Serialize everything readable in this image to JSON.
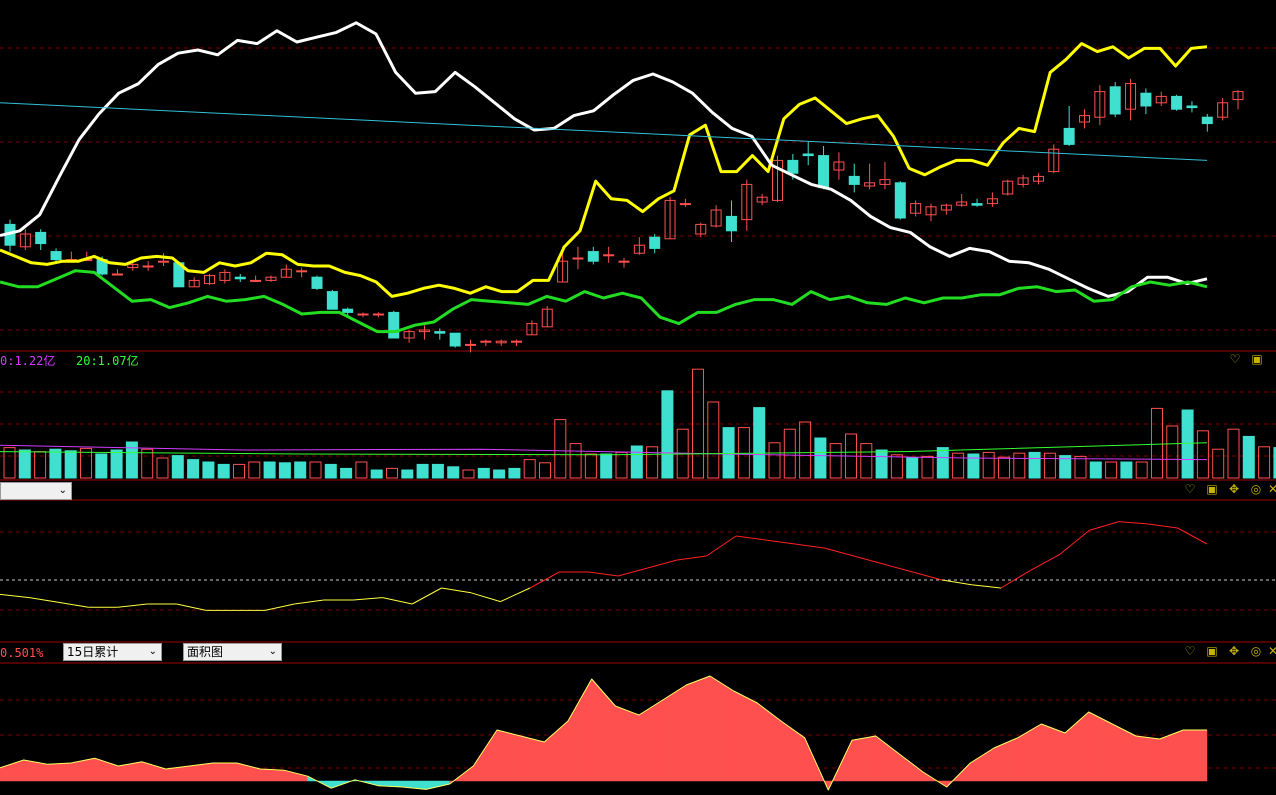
{
  "panels": {
    "volume": {
      "legend": [
        {
          "text": "0:1.22亿",
          "color": "#d23cff"
        },
        {
          "text": "20:1.07亿",
          "color": "#32ff32"
        }
      ],
      "icons": [
        "heart-icon",
        "window-icon",
        "pin-icon"
      ]
    },
    "indicator": {
      "dropdown": "",
      "icons": [
        "heart-icon",
        "window-icon",
        "pin-icon",
        "search-icon",
        "close-icon"
      ]
    },
    "flow": {
      "value_label": "0.501%",
      "dropdown_period": "15日累计",
      "dropdown_type": "面积图",
      "icons": [
        "heart-icon",
        "window-icon",
        "pin-icon",
        "search-icon",
        "close-icon"
      ]
    }
  },
  "colors": {
    "up": "#ff5050",
    "down": "#40e0d0",
    "grid": "#7a0000",
    "yellow": "#ffff00",
    "white": "#ffffff",
    "green": "#22dd22",
    "cyan": "#33c0d8"
  },
  "chart_data": [
    {
      "type": "candlestick",
      "name": "price",
      "candles": [
        [
          0.66,
          0.53,
          0.69,
          0.49
        ],
        [
          0.52,
          0.6,
          0.63,
          0.5
        ],
        [
          0.61,
          0.54,
          0.63,
          0.5
        ],
        [
          0.49,
          0.44,
          0.51,
          0.42
        ],
        [
          0.44,
          0.44,
          0.49,
          0.42
        ],
        [
          0.44,
          0.44,
          0.49,
          0.43
        ],
        [
          0.44,
          0.35,
          0.46,
          0.34
        ],
        [
          0.35,
          0.35,
          0.38,
          0.34
        ],
        [
          0.39,
          0.41,
          0.43,
          0.37
        ],
        [
          0.4,
          0.4,
          0.43,
          0.37
        ],
        [
          0.43,
          0.43,
          0.48,
          0.4
        ],
        [
          0.42,
          0.27,
          0.43,
          0.27
        ],
        [
          0.27,
          0.31,
          0.33,
          0.27
        ],
        [
          0.29,
          0.34,
          0.35,
          0.28
        ],
        [
          0.31,
          0.36,
          0.38,
          0.29
        ],
        [
          0.33,
          0.32,
          0.35,
          0.3
        ],
        [
          0.31,
          0.31,
          0.34,
          0.3
        ],
        [
          0.31,
          0.33,
          0.34,
          0.3
        ],
        [
          0.33,
          0.38,
          0.41,
          0.33
        ],
        [
          0.37,
          0.37,
          0.39,
          0.33
        ],
        [
          0.33,
          0.26,
          0.34,
          0.25
        ],
        [
          0.24,
          0.13,
          0.25,
          0.13
        ],
        [
          0.13,
          0.11,
          0.14,
          0.09
        ],
        [
          0.1,
          0.1,
          0.11,
          0.08
        ],
        [
          0.1,
          0.1,
          0.11,
          0.08
        ],
        [
          0.11,
          -0.05,
          0.12,
          -0.05
        ],
        [
          -0.05,
          -0.01,
          0.0,
          -0.08
        ],
        [
          -0.01,
          0.0,
          0.03,
          -0.06
        ],
        [
          -0.01,
          -0.02,
          0.01,
          -0.06
        ],
        [
          -0.02,
          -0.1,
          -0.02,
          -0.11
        ],
        [
          -0.09,
          -0.09,
          -0.06,
          -0.14
        ],
        [
          -0.07,
          -0.07,
          -0.06,
          -0.1
        ],
        [
          -0.08,
          -0.07,
          -0.06,
          -0.1
        ],
        [
          -0.07,
          -0.07,
          -0.06,
          -0.1
        ],
        [
          -0.03,
          0.04,
          0.06,
          -0.03
        ],
        [
          0.02,
          0.13,
          0.15,
          0.02
        ],
        [
          0.3,
          0.43,
          0.52,
          0.3
        ],
        [
          0.45,
          0.45,
          0.52,
          0.38
        ],
        [
          0.49,
          0.43,
          0.52,
          0.41
        ],
        [
          0.47,
          0.47,
          0.52,
          0.42
        ],
        [
          0.43,
          0.43,
          0.45,
          0.39
        ],
        [
          0.48,
          0.53,
          0.58,
          0.47
        ],
        [
          0.58,
          0.51,
          0.6,
          0.48
        ],
        [
          0.57,
          0.81,
          0.83,
          0.57
        ],
        [
          0.79,
          0.79,
          0.82,
          0.77
        ],
        [
          0.6,
          0.66,
          0.67,
          0.58
        ],
        [
          0.65,
          0.75,
          0.78,
          0.64
        ],
        [
          0.71,
          0.62,
          0.81,
          0.55
        ],
        [
          0.69,
          0.91,
          0.94,
          0.62
        ],
        [
          0.8,
          0.83,
          0.85,
          0.78
        ],
        [
          0.81,
          1.06,
          1.09,
          0.8
        ],
        [
          1.06,
          0.98,
          1.1,
          0.94
        ],
        [
          1.1,
          1.09,
          1.18,
          1.03
        ],
        [
          1.09,
          0.89,
          1.15,
          0.88
        ],
        [
          1.0,
          1.05,
          1.11,
          0.94
        ],
        [
          0.96,
          0.91,
          1.04,
          0.86
        ],
        [
          0.9,
          0.92,
          1.04,
          0.88
        ],
        [
          0.91,
          0.94,
          1.05,
          0.88
        ],
        [
          0.92,
          0.7,
          0.93,
          0.69
        ],
        [
          0.73,
          0.79,
          0.81,
          0.71
        ],
        [
          0.72,
          0.77,
          0.79,
          0.68
        ],
        [
          0.75,
          0.78,
          0.79,
          0.72
        ],
        [
          0.78,
          0.8,
          0.85,
          0.77
        ],
        [
          0.79,
          0.78,
          0.82,
          0.77
        ],
        [
          0.79,
          0.82,
          0.86,
          0.77
        ],
        [
          0.85,
          0.93,
          0.94,
          0.84
        ],
        [
          0.91,
          0.95,
          0.97,
          0.89
        ],
        [
          0.93,
          0.96,
          0.98,
          0.91
        ],
        [
          0.99,
          1.13,
          1.16,
          0.98
        ],
        [
          1.26,
          1.16,
          1.4,
          1.15
        ],
        [
          1.3,
          1.34,
          1.38,
          1.26
        ],
        [
          1.33,
          1.49,
          1.53,
          1.28
        ],
        [
          1.52,
          1.35,
          1.55,
          1.33
        ],
        [
          1.38,
          1.54,
          1.57,
          1.31
        ],
        [
          1.48,
          1.4,
          1.51,
          1.35
        ],
        [
          1.42,
          1.46,
          1.49,
          1.4
        ],
        [
          1.46,
          1.38,
          1.47,
          1.37
        ],
        [
          1.4,
          1.39,
          1.43,
          1.36
        ],
        [
          1.33,
          1.29,
          1.35,
          1.24
        ],
        [
          1.33,
          1.42,
          1.45,
          1.31
        ],
        [
          1.44,
          1.49,
          1.5,
          1.38
        ]
      ],
      "series": [
        {
          "color": "yellow",
          "values": [
            0.5,
            0.46,
            0.42,
            0.41,
            0.43,
            0.43,
            0.46,
            0.42,
            0.41,
            0.45,
            0.46,
            0.45,
            0.37,
            0.36,
            0.42,
            0.4,
            0.42,
            0.48,
            0.47,
            0.41,
            0.4,
            0.4,
            0.36,
            0.34,
            0.3,
            0.21,
            0.23,
            0.26,
            0.28,
            0.26,
            0.23,
            0.27,
            0.24,
            0.24,
            0.31,
            0.31,
            0.52,
            0.62,
            0.93,
            0.82,
            0.81,
            0.74,
            0.82,
            0.87,
            1.22,
            1.28,
            0.99,
            0.99,
            1.09,
            0.99,
            1.32,
            1.41,
            1.45,
            1.37,
            1.29,
            1.32,
            1.34,
            1.21,
            1.01,
            0.97,
            1.02,
            1.06,
            1.06,
            1.03,
            1.17,
            1.26,
            1.24,
            1.61,
            1.69,
            1.79,
            1.74,
            1.77,
            1.7,
            1.76,
            1.76,
            1.65,
            1.76,
            1.77
          ]
        },
        {
          "color": "white",
          "values": [
            0.59,
            0.62,
            0.72,
            0.96,
            1.19,
            1.35,
            1.48,
            1.54,
            1.66,
            1.73,
            1.75,
            1.72,
            1.81,
            1.79,
            1.87,
            1.8,
            1.83,
            1.86,
            1.92,
            1.85,
            1.61,
            1.48,
            1.49,
            1.61,
            1.52,
            1.42,
            1.32,
            1.25,
            1.26,
            1.34,
            1.37,
            1.47,
            1.56,
            1.6,
            1.55,
            1.48,
            1.36,
            1.26,
            1.21,
            1.03,
            0.97,
            0.91,
            0.88,
            0.81,
            0.71,
            0.64,
            0.61,
            0.52,
            0.46,
            0.51,
            0.49,
            0.43,
            0.42,
            0.38,
            0.32,
            0.26,
            0.21,
            0.24,
            0.33,
            0.33,
            0.29,
            0.32
          ]
        },
        {
          "color": "green",
          "values": [
            0.3,
            0.27,
            0.27,
            0.32,
            0.37,
            0.36,
            0.27,
            0.18,
            0.19,
            0.14,
            0.17,
            0.21,
            0.18,
            0.19,
            0.21,
            0.16,
            0.1,
            0.11,
            0.11,
            0.05,
            -0.01,
            -0.01,
            0.03,
            0.05,
            0.13,
            0.19,
            0.18,
            0.17,
            0.16,
            0.21,
            0.18,
            0.24,
            0.2,
            0.23,
            0.2,
            0.08,
            0.04,
            0.11,
            0.11,
            0.16,
            0.19,
            0.19,
            0.16,
            0.24,
            0.19,
            0.21,
            0.17,
            0.16,
            0.2,
            0.17,
            0.2,
            0.2,
            0.22,
            0.22,
            0.26,
            0.27,
            0.24,
            0.25,
            0.18,
            0.19,
            0.27,
            0.3,
            0.28,
            0.3,
            0.27
          ]
        },
        {
          "color": "cyan",
          "values": [
            1.42,
            1.06
          ]
        }
      ]
    },
    {
      "type": "bar",
      "name": "volume",
      "values": [
        0.38,
        0.35,
        0.33,
        0.36,
        0.34,
        0.37,
        0.3,
        0.35,
        0.45,
        0.36,
        0.25,
        0.28,
        0.23,
        0.2,
        0.17,
        0.17,
        0.2,
        0.2,
        0.19,
        0.2,
        0.2,
        0.17,
        0.12,
        0.2,
        0.1,
        0.12,
        0.1,
        0.17,
        0.17,
        0.14,
        0.1,
        0.12,
        0.1,
        0.12,
        0.23,
        0.19,
        0.73,
        0.43,
        0.3,
        0.3,
        0.32,
        0.4,
        0.39,
        1.09,
        0.61,
        1.36,
        0.95,
        0.63,
        0.63,
        0.88,
        0.44,
        0.61,
        0.7,
        0.5,
        0.43,
        0.55,
        0.43,
        0.35,
        0.29,
        0.25,
        0.27,
        0.38,
        0.31,
        0.3,
        0.32,
        0.26,
        0.31,
        0.32,
        0.31,
        0.28,
        0.27,
        0.2,
        0.2,
        0.2,
        0.2,
        0.87,
        0.65,
        0.85,
        0.59,
        0.36,
        0.61,
        0.52,
        0.39,
        0.38,
        0.37
      ],
      "series": [
        {
          "name": "0",
          "values": [
            0.41,
            0.35,
            0.36,
            0.3,
            0.25,
            0.23
          ]
        },
        {
          "name": "20",
          "values": [
            0.33,
            0.3,
            0.29,
            0.33,
            0.44
          ]
        }
      ]
    },
    {
      "type": "line",
      "name": "indicator",
      "values": [
        -0.18,
        -0.22,
        -0.28,
        -0.34,
        -0.34,
        -0.3,
        -0.3,
        -0.38,
        -0.38,
        -0.38,
        -0.3,
        -0.25,
        -0.25,
        -0.22,
        -0.3,
        -0.1,
        -0.16,
        -0.27,
        -0.1,
        0.1,
        0.1,
        0.05,
        0.15,
        0.25,
        0.3,
        0.55,
        0.5,
        0.45,
        0.4,
        0.3,
        0.2,
        0.1,
        0.0,
        -0.06,
        -0.1,
        0.12,
        0.32,
        0.62,
        0.73,
        0.7,
        0.65,
        0.45
      ]
    },
    {
      "type": "area",
      "name": "flow",
      "values": [
        0.22,
        0.35,
        0.28,
        0.3,
        0.38,
        0.25,
        0.32,
        0.2,
        0.25,
        0.3,
        0.3,
        0.2,
        0.18,
        0.08,
        -0.12,
        0.02,
        -0.08,
        -0.1,
        -0.14,
        -0.05,
        0.25,
        0.85,
        0.75,
        0.65,
        1.0,
        1.7,
        1.25,
        1.1,
        1.35,
        1.6,
        1.75,
        1.5,
        1.3,
        1.0,
        0.72,
        -0.15,
        0.68,
        0.75,
        0.45,
        0.15,
        -0.1,
        0.3,
        0.55,
        0.72,
        0.95,
        0.8,
        1.15,
        0.95,
        0.75,
        0.7,
        0.85,
        0.85
      ]
    }
  ]
}
